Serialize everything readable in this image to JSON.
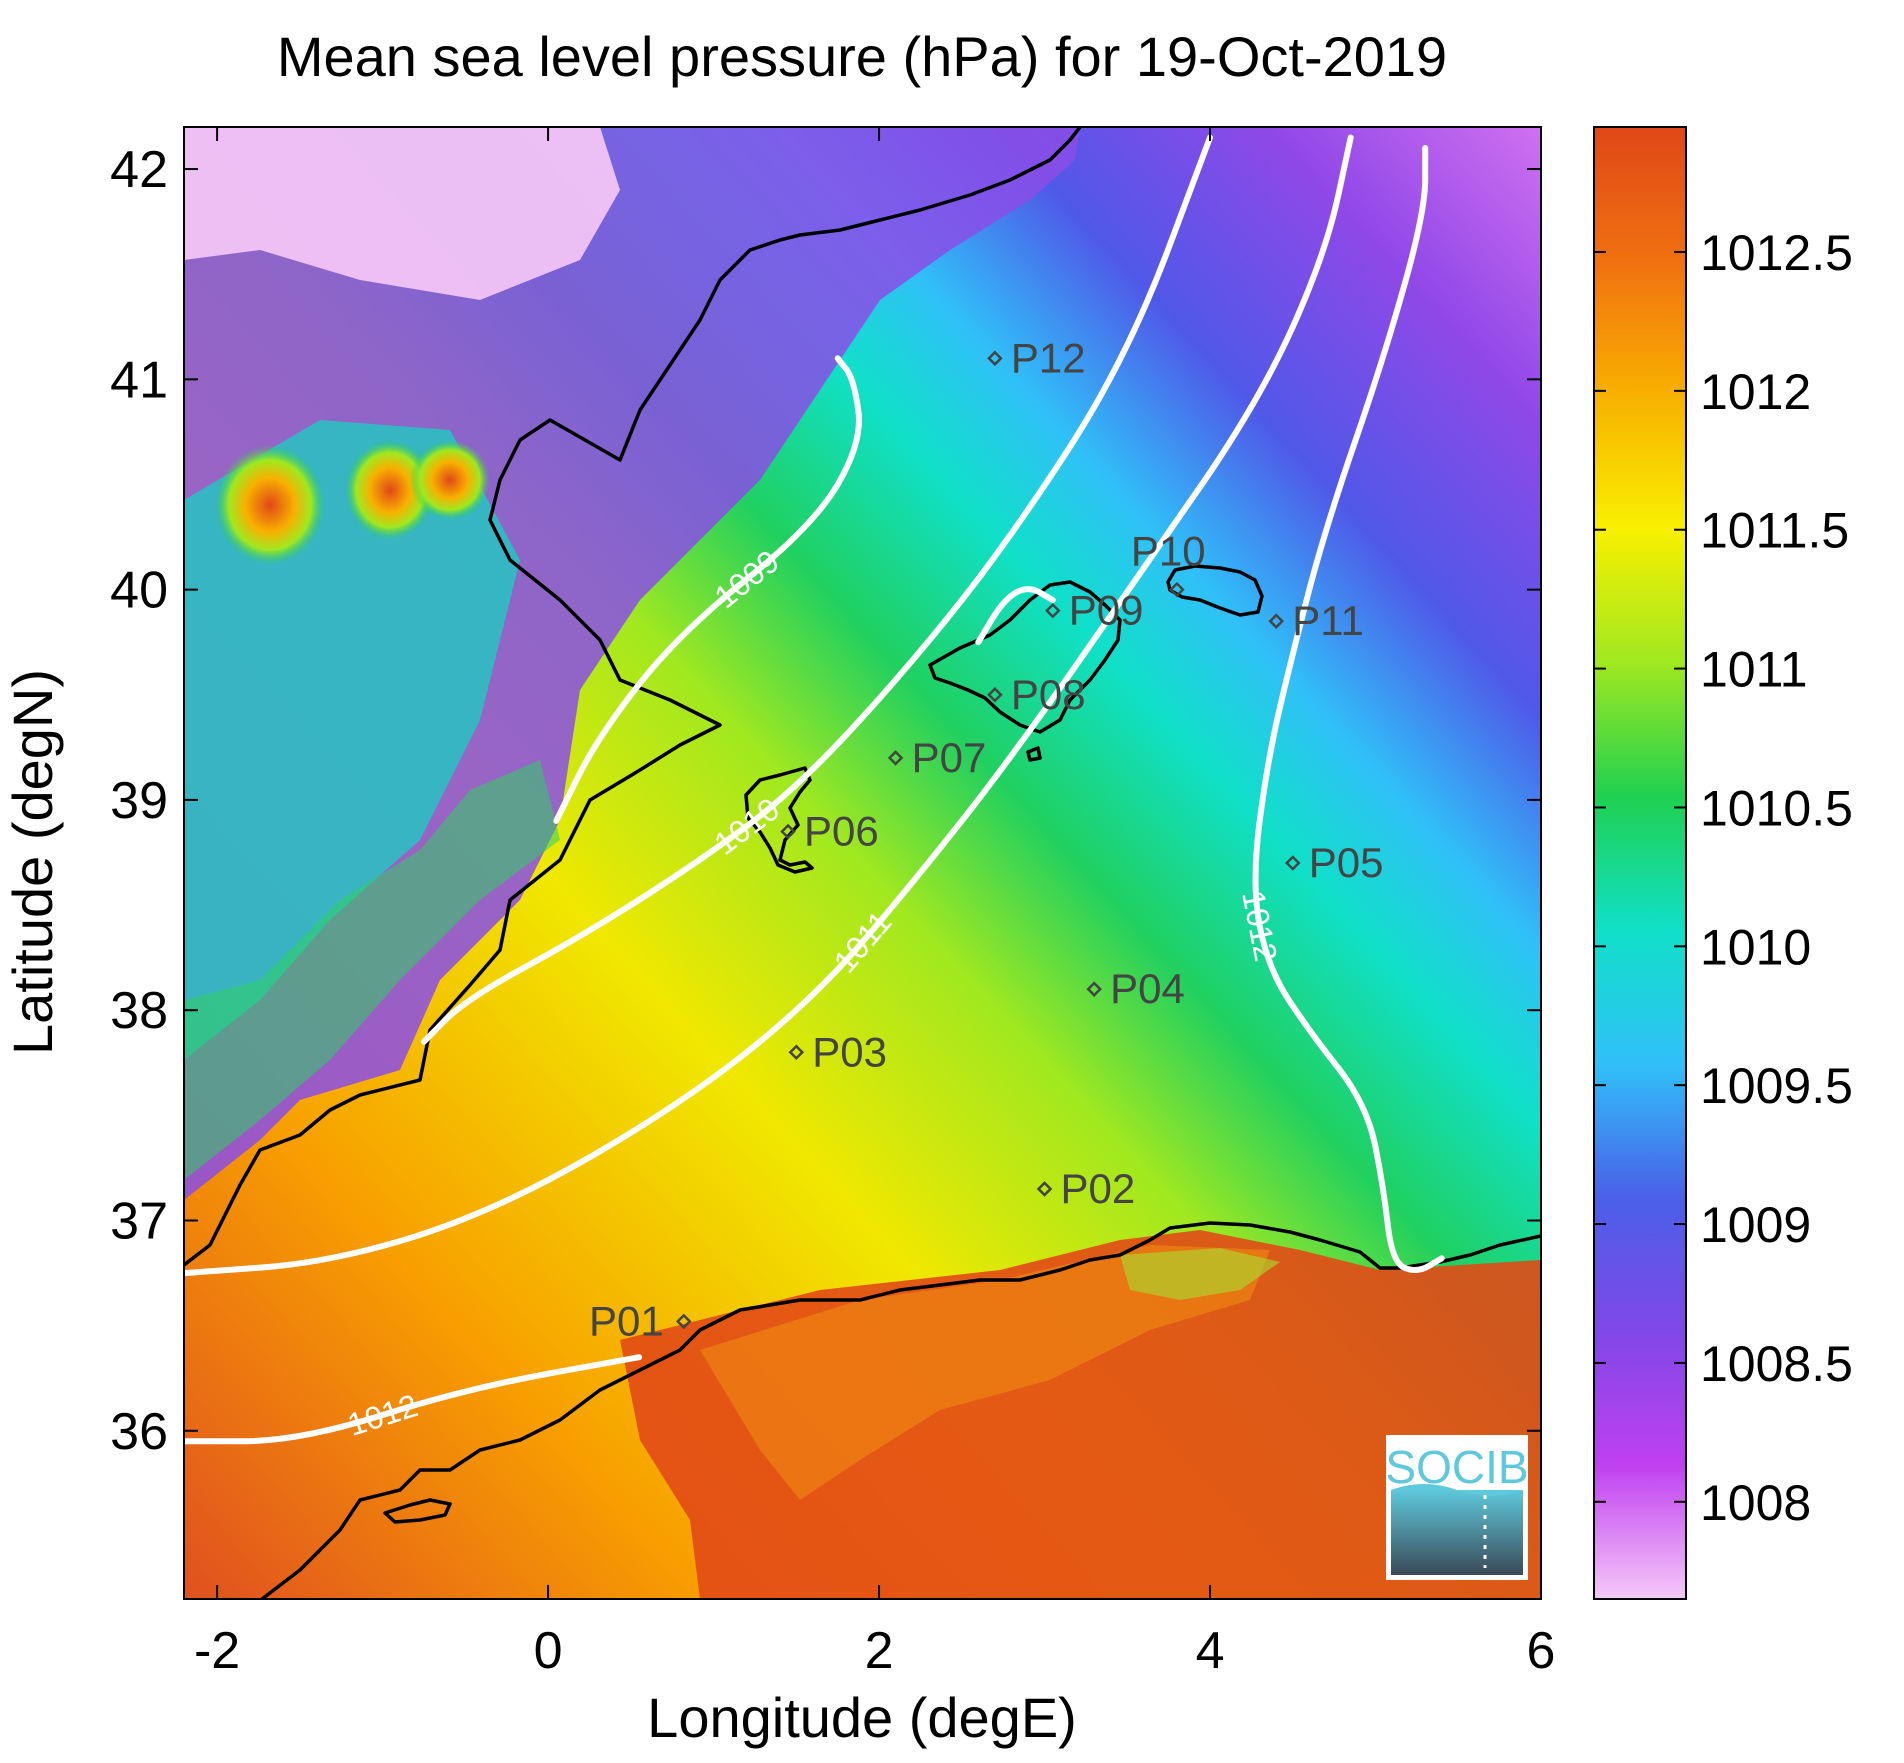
{
  "title": "Mean sea level pressure (hPa) for 19-Oct-2019",
  "xlabel": "Longitude (degE)",
  "ylabel": "Latitude (degN)",
  "logo_text": "SOCIB",
  "chart_data": {
    "type": "heatmap",
    "title": "Mean sea level pressure (hPa) for 19-Oct-2019",
    "xlabel": "Longitude (degE)",
    "ylabel": "Latitude (degN)",
    "xlim": [
      -2.2,
      6.0
    ],
    "ylim": [
      35.2,
      42.2
    ],
    "xticks": [
      -2,
      0,
      2,
      4,
      6
    ],
    "xtick_labels": [
      "-2",
      "0",
      "2",
      "4",
      "6"
    ],
    "yticks": [
      36,
      37,
      38,
      39,
      40,
      41,
      42
    ],
    "ytick_labels": [
      "36",
      "37",
      "38",
      "39",
      "40",
      "41",
      "42"
    ],
    "colorbar": {
      "range": [
        1007.65,
        1012.95
      ],
      "ticks": [
        1008,
        1008.5,
        1009,
        1009.5,
        1010,
        1010.5,
        1011,
        1011.5,
        1012,
        1012.5
      ],
      "tick_labels": [
        "1008",
        "1008.5",
        "1009",
        "1009.5",
        "1010",
        "1010.5",
        "1011",
        "1011.5",
        "1012",
        "1012.5"
      ],
      "colormap": [
        "#f5c8f8",
        "#c040f0",
        "#8048e8",
        "#4a60e8",
        "#30c0f8",
        "#10e0c8",
        "#20d050",
        "#a0e820",
        "#f8f000",
        "#f8b000",
        "#f07010",
        "#e04818"
      ]
    },
    "contour_color": "#ffffff",
    "contours": [
      {
        "level": 1009,
        "label": "1009",
        "points": [
          [
            0.05,
            38.9
          ],
          [
            0.3,
            39.3
          ],
          [
            0.8,
            39.8
          ],
          [
            1.6,
            40.3
          ],
          [
            1.9,
            40.7
          ],
          [
            1.85,
            41.0
          ],
          [
            1.75,
            41.1
          ]
        ]
      },
      {
        "level": 1010,
        "label": "1010",
        "points": [
          [
            -0.75,
            37.85
          ],
          [
            -0.5,
            38.05
          ],
          [
            0.2,
            38.35
          ],
          [
            0.9,
            38.7
          ],
          [
            1.5,
            39.05
          ],
          [
            2.2,
            39.65
          ],
          [
            2.8,
            40.25
          ],
          [
            3.5,
            41.1
          ],
          [
            4.0,
            42.15
          ]
        ]
      },
      {
        "level": 1010,
        "label": "",
        "points": [
          [
            2.6,
            39.75
          ],
          [
            2.75,
            39.95
          ],
          [
            2.9,
            40.02
          ],
          [
            3.05,
            39.95
          ]
        ]
      },
      {
        "level": 1011,
        "label": "1011",
        "points": [
          [
            -2.2,
            36.75
          ],
          [
            -1.3,
            36.8
          ],
          [
            -0.3,
            37.05
          ],
          [
            0.8,
            37.55
          ],
          [
            1.6,
            38.05
          ],
          [
            2.2,
            38.6
          ],
          [
            2.8,
            39.2
          ],
          [
            3.6,
            40.1
          ],
          [
            4.3,
            40.9
          ],
          [
            4.7,
            41.6
          ],
          [
            4.85,
            42.15
          ]
        ]
      },
      {
        "level": 1012,
        "label": "1012",
        "points": [
          [
            -2.2,
            35.95
          ],
          [
            -1.5,
            35.95
          ],
          [
            -0.5,
            36.2
          ],
          [
            0.55,
            36.35
          ]
        ]
      },
      {
        "level": 1012,
        "label": "1012",
        "points": [
          [
            5.3,
            42.1
          ],
          [
            5.3,
            41.8
          ],
          [
            5.05,
            41.1
          ],
          [
            4.7,
            40.3
          ],
          [
            4.5,
            39.7
          ],
          [
            4.35,
            39.2
          ],
          [
            4.25,
            38.6
          ],
          [
            4.35,
            38.2
          ],
          [
            4.6,
            37.9
          ],
          [
            4.95,
            37.55
          ],
          [
            5.05,
            37.15
          ],
          [
            5.1,
            36.8
          ],
          [
            5.25,
            36.75
          ],
          [
            5.4,
            36.82
          ]
        ]
      }
    ],
    "stations": [
      {
        "name": "P01",
        "lon": 0.82,
        "lat": 36.52
      },
      {
        "name": "P02",
        "lon": 3.0,
        "lat": 37.15
      },
      {
        "name": "P03",
        "lon": 1.5,
        "lat": 37.8
      },
      {
        "name": "P04",
        "lon": 3.3,
        "lat": 38.1
      },
      {
        "name": "P05",
        "lon": 4.5,
        "lat": 38.7
      },
      {
        "name": "P06",
        "lon": 1.45,
        "lat": 38.85
      },
      {
        "name": "P07",
        "lon": 2.1,
        "lat": 39.2
      },
      {
        "name": "P08",
        "lon": 2.7,
        "lat": 39.5
      },
      {
        "name": "P09",
        "lon": 3.05,
        "lat": 39.9
      },
      {
        "name": "P10",
        "lon": 3.8,
        "lat": 40.0
      },
      {
        "name": "P11",
        "lon": 4.4,
        "lat": 39.85
      },
      {
        "name": "P12",
        "lon": 2.7,
        "lat": 41.1
      }
    ]
  }
}
